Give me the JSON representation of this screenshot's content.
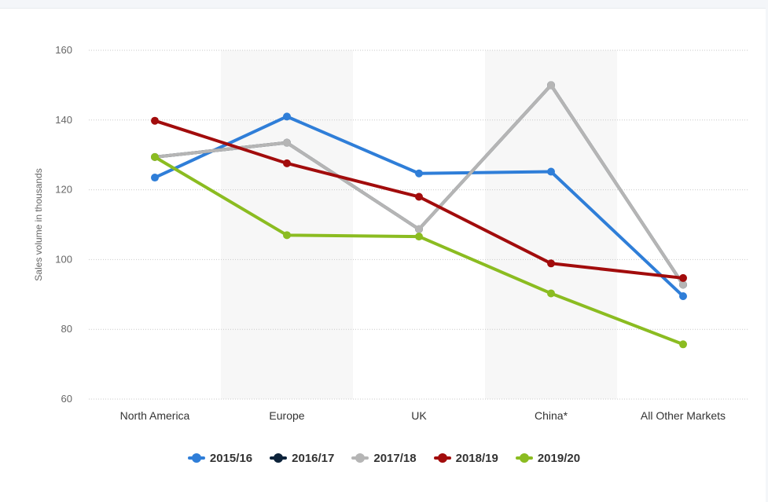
{
  "chart_data": {
    "type": "line",
    "categories": [
      "North America",
      "Europe",
      "UK",
      "China*",
      "All Other Markets"
    ],
    "ylabel": "Sales volume in thousands",
    "ylim": [
      60,
      160
    ],
    "yticks": [
      60,
      80,
      100,
      120,
      140,
      160
    ],
    "grid": true,
    "legend_position": "bottom",
    "series": [
      {
        "name": "2015/16",
        "color": "#2f7ed8",
        "values": [
          123.5,
          141,
          124.7,
          125.2,
          89.5
        ]
      },
      {
        "name": "2016/17",
        "color": "#0d233a",
        "values": [
          129.4,
          133.5,
          108.7,
          150,
          92.8
        ]
      },
      {
        "name": "2017/18",
        "color": "#b5b5b5",
        "values": [
          129.4,
          133.5,
          108.7,
          150,
          92.8
        ]
      },
      {
        "name": "2018/19",
        "color": "#a20c0c",
        "values": [
          139.8,
          127.6,
          118,
          98.9,
          94.7
        ]
      },
      {
        "name": "2019/20",
        "color": "#8bbc21",
        "values": [
          129.4,
          107,
          106.6,
          90.3,
          75.7
        ]
      }
    ]
  }
}
